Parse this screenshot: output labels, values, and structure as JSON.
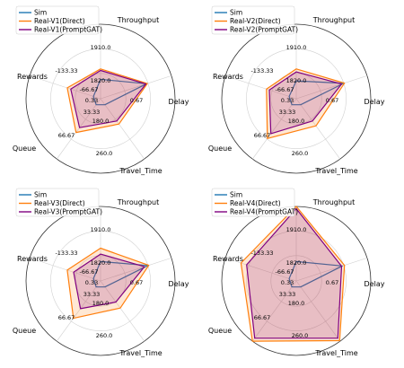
{
  "chart_data": [
    {
      "type": "radar",
      "axes": [
        "Throughput",
        "Delay",
        "Travel_Time",
        "Queue",
        "Rewards"
      ],
      "ticks": [
        {
          "axis": "Throughput",
          "labels": [
            "1820.0",
            "1910.0"
          ]
        },
        {
          "axis": "Delay",
          "labels": [
            "0.33",
            "0.67"
          ]
        },
        {
          "axis": "Travel_Time",
          "labels": [
            "180.0",
            "260.0"
          ]
        },
        {
          "axis": "Queue",
          "labels": [
            "33.33",
            "66.67"
          ]
        },
        {
          "axis": "Rewards",
          "labels": [
            "-66.67",
            "-133.33"
          ]
        }
      ],
      "legend_position": "top-left",
      "series": [
        {
          "name": "Sim",
          "color": "#1f77b4",
          "values": [
            0.26,
            0.65,
            0.1,
            0.1,
            0.1
          ],
          "fill": false
        },
        {
          "name": "Real-V1(Direct)",
          "color": "#ff7f0e",
          "values": [
            0.4,
            0.66,
            0.42,
            0.56,
            0.47
          ],
          "fill": true
        },
        {
          "name": "Real-V1(PromptGAT)",
          "color": "#800080",
          "values": [
            0.38,
            0.64,
            0.37,
            0.48,
            0.42
          ],
          "fill": true
        }
      ]
    },
    {
      "type": "radar",
      "axes": [
        "Throughput",
        "Delay",
        "Travel_Time",
        "Queue",
        "Rewards"
      ],
      "ticks": [
        {
          "axis": "Throughput",
          "labels": [
            "1820.0",
            "1910.0"
          ]
        },
        {
          "axis": "Delay",
          "labels": [
            "0.33",
            "0.67"
          ]
        },
        {
          "axis": "Travel_Time",
          "labels": [
            "180.0",
            "260.0"
          ]
        },
        {
          "axis": "Queue",
          "labels": [
            "33.33",
            "66.67"
          ]
        },
        {
          "axis": "Rewards",
          "labels": [
            "-66.67",
            "-133.33"
          ]
        }
      ],
      "legend_position": "top-left",
      "series": [
        {
          "name": "Sim",
          "color": "#1f77b4",
          "values": [
            0.24,
            0.67,
            0.1,
            0.1,
            0.1
          ],
          "fill": false
        },
        {
          "name": "Real-V2(Direct)",
          "color": "#ff7f0e",
          "values": [
            0.4,
            0.68,
            0.45,
            0.66,
            0.42
          ],
          "fill": true
        },
        {
          "name": "Real-V2(PromptGAT)",
          "color": "#800080",
          "values": [
            0.36,
            0.64,
            0.37,
            0.58,
            0.38
          ],
          "fill": true
        }
      ]
    },
    {
      "type": "radar",
      "axes": [
        "Throughput",
        "Delay",
        "Travel_Time",
        "Queue",
        "Rewards"
      ],
      "ticks": [
        {
          "axis": "Throughput",
          "labels": [
            "1820.0",
            "1910.0"
          ]
        },
        {
          "axis": "Delay",
          "labels": [
            "0.33",
            "0.67"
          ]
        },
        {
          "axis": "Travel_Time",
          "labels": [
            "180.0",
            "260.0"
          ]
        },
        {
          "axis": "Queue",
          "labels": [
            "33.33",
            "66.67"
          ]
        },
        {
          "axis": "Rewards",
          "labels": [
            "-66.67",
            "-133.33"
          ]
        }
      ],
      "legend_position": "top-left",
      "series": [
        {
          "name": "Sim",
          "color": "#1f77b4",
          "values": [
            0.26,
            0.67,
            0.1,
            0.1,
            0.1
          ],
          "fill": false
        },
        {
          "name": "Real-V3(Direct)",
          "color": "#ff7f0e",
          "values": [
            0.44,
            0.68,
            0.45,
            0.62,
            0.47
          ],
          "fill": true
        },
        {
          "name": "Real-V3(PromptGAT)",
          "color": "#800080",
          "values": [
            0.36,
            0.62,
            0.35,
            0.46,
            0.38
          ],
          "fill": true
        }
      ]
    },
    {
      "type": "radar",
      "axes": [
        "Throughput",
        "Delay",
        "Travel_Time",
        "Queue",
        "Rewards"
      ],
      "ticks": [
        {
          "axis": "Throughput",
          "labels": [
            "1820.0",
            "1910.0"
          ]
        },
        {
          "axis": "Delay",
          "labels": [
            "0.33",
            "0.67"
          ]
        },
        {
          "axis": "Travel_Time",
          "labels": [
            "180.0",
            "260.0"
          ]
        },
        {
          "axis": "Queue",
          "labels": [
            "33.33",
            "66.67"
          ]
        },
        {
          "axis": "Rewards",
          "labels": [
            "-66.67",
            "-133.33"
          ]
        }
      ],
      "legend_position": "top-left",
      "series": [
        {
          "name": "Sim",
          "color": "#1f77b4",
          "values": [
            0.26,
            0.65,
            0.1,
            0.1,
            0.1
          ],
          "fill": false
        },
        {
          "name": "Real-V4(Direct)",
          "color": "#ff7f0e",
          "values": [
            1.0,
            0.68,
            0.99,
            1.0,
            0.78
          ],
          "fill": true
        },
        {
          "name": "Real-V4(PromptGAT)",
          "color": "#800080",
          "values": [
            0.97,
            0.64,
            0.95,
            0.95,
            0.7
          ],
          "fill": true
        }
      ]
    }
  ]
}
